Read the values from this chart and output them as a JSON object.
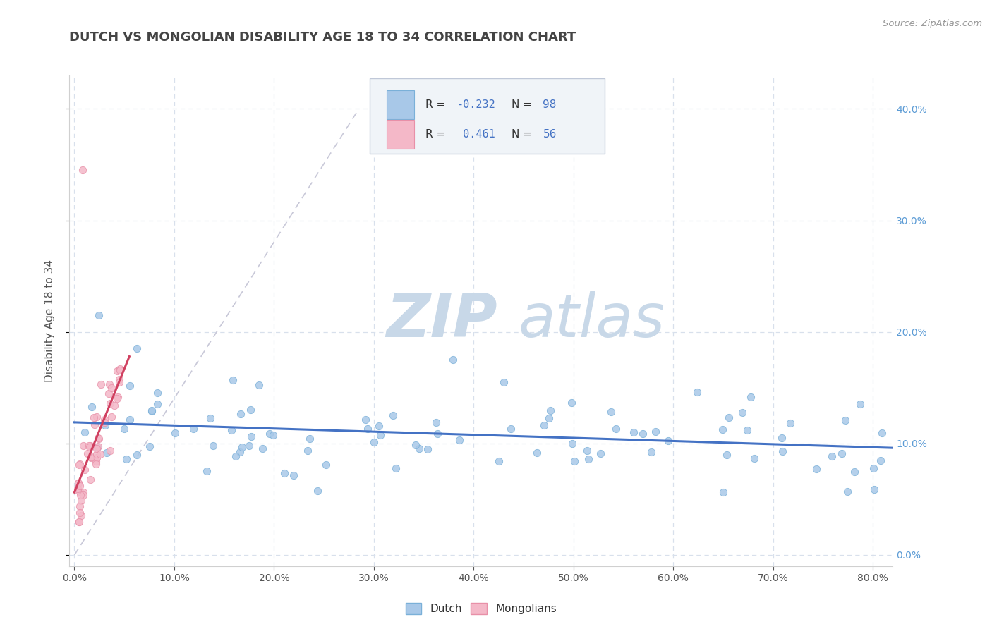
{
  "title": "DUTCH VS MONGOLIAN DISABILITY AGE 18 TO 34 CORRELATION CHART",
  "source_text": "Source: ZipAtlas.com",
  "ylabel": "Disability Age 18 to 34",
  "xlim": [
    -0.005,
    0.82
  ],
  "ylim": [
    -0.01,
    0.43
  ],
  "xticks": [
    0.0,
    0.1,
    0.2,
    0.3,
    0.4,
    0.5,
    0.6,
    0.7,
    0.8
  ],
  "yticks": [
    0.0,
    0.1,
    0.2,
    0.3,
    0.4
  ],
  "dutch_color": "#a8c8e8",
  "dutch_edge_color": "#7ab0d8",
  "mongolian_color": "#f4b8c8",
  "mongolian_edge_color": "#e890a8",
  "dutch_line_color": "#4472c4",
  "mongolian_line_color": "#d04060",
  "trend_dashed_color": "#c8c8d8",
  "R_dutch": -0.232,
  "N_dutch": 98,
  "R_mongolian": 0.461,
  "N_mongolian": 56,
  "background_color": "#ffffff",
  "grid_color": "#d8e0ec",
  "title_color": "#444444",
  "right_yaxis_color": "#5b9bd5",
  "watermark_color": "#c8d8e8",
  "legend_box_color": "#f0f4f8",
  "legend_border_color": "#c0c8d8"
}
